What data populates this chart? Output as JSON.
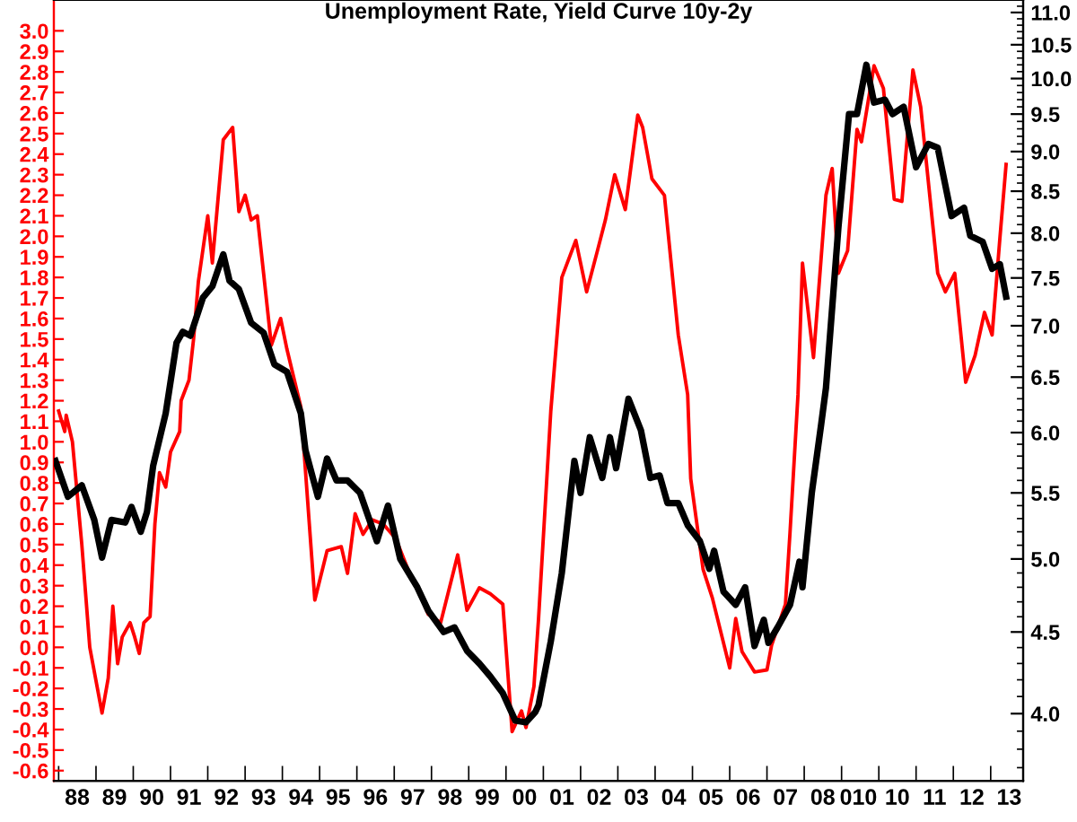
{
  "chart_data": {
    "type": "line",
    "title": "Unemployment Rate, Yield Curve 10y-2y",
    "log": "y2",
    "grid": false,
    "marker": "none",
    "line_style": "solid",
    "xlim": [
      "1987-11-15",
      "2013-11-15"
    ],
    "xticks": [
      {
        "value": "1988-01-01",
        "label": null
      },
      {
        "value": "1988-07-01",
        "label": "88"
      },
      {
        "value": "1989-01-01",
        "label": null
      },
      {
        "value": "1989-07-01",
        "label": "89"
      },
      {
        "value": "1990-01-01",
        "label": null
      },
      {
        "value": "1990-07-01",
        "label": "90"
      },
      {
        "value": "1991-01-01",
        "label": null
      },
      {
        "value": "1991-07-01",
        "label": "91"
      },
      {
        "value": "1992-01-01",
        "label": null
      },
      {
        "value": "1992-07-01",
        "label": "92"
      },
      {
        "value": "1993-01-01",
        "label": null
      },
      {
        "value": "1993-07-01",
        "label": "93"
      },
      {
        "value": "1994-01-01",
        "label": null
      },
      {
        "value": "1994-07-01",
        "label": "94"
      },
      {
        "value": "1995-01-01",
        "label": null
      },
      {
        "value": "1995-07-01",
        "label": "95"
      },
      {
        "value": "1996-01-01",
        "label": null
      },
      {
        "value": "1996-07-01",
        "label": "96"
      },
      {
        "value": "1997-01-01",
        "label": null
      },
      {
        "value": "1997-07-01",
        "label": "97"
      },
      {
        "value": "1998-01-01",
        "label": null
      },
      {
        "value": "1998-07-01",
        "label": "98"
      },
      {
        "value": "1999-01-01",
        "label": null
      },
      {
        "value": "1999-07-01",
        "label": "99"
      },
      {
        "value": "2000-01-01",
        "label": null
      },
      {
        "value": "2000-07-01",
        "label": "00"
      },
      {
        "value": "2001-01-01",
        "label": null
      },
      {
        "value": "2001-07-01",
        "label": "01"
      },
      {
        "value": "2002-01-01",
        "label": null
      },
      {
        "value": "2002-07-01",
        "label": "02"
      },
      {
        "value": "2003-01-01",
        "label": null
      },
      {
        "value": "2003-07-01",
        "label": "03"
      },
      {
        "value": "2004-01-01",
        "label": null
      },
      {
        "value": "2004-07-01",
        "label": "04"
      },
      {
        "value": "2005-01-01",
        "label": null
      },
      {
        "value": "2005-07-01",
        "label": "05"
      },
      {
        "value": "2006-01-01",
        "label": null
      },
      {
        "value": "2006-07-01",
        "label": "06"
      },
      {
        "value": "2007-01-01",
        "label": null
      },
      {
        "value": "2007-07-01",
        "label": "07"
      },
      {
        "value": "2008-01-01",
        "label": null
      },
      {
        "value": "2008-07-01",
        "label": "08"
      },
      {
        "value": "2009-01-01",
        "label": null
      },
      {
        "value": "2009-06-15",
        "label": "010"
      },
      {
        "value": "2010-01-01",
        "label": null
      },
      {
        "value": "2010-07-01",
        "label": "10"
      },
      {
        "value": "2011-01-01",
        "label": null
      },
      {
        "value": "2011-07-01",
        "label": "11"
      },
      {
        "value": "2012-01-01",
        "label": null
      },
      {
        "value": "2012-07-01",
        "label": "12"
      },
      {
        "value": "2013-01-01",
        "label": null
      },
      {
        "value": "2013-07-01",
        "label": "13"
      }
    ],
    "ylim": [
      -0.65,
      3.15
    ],
    "yticks": [
      -0.6,
      -0.5,
      -0.4,
      -0.3,
      -0.2,
      -0.1,
      {
        "value": 0,
        "label": "0.0"
      },
      0.1,
      0.2,
      0.3,
      0.4,
      0.5,
      0.6,
      0.7,
      0.8,
      0.9,
      {
        "value": 1,
        "label": "1.0"
      },
      1.1,
      1.2,
      1.3,
      1.4,
      1.5,
      1.6,
      1.7,
      1.8,
      1.9,
      {
        "value": 2,
        "label": "2.0"
      },
      2.1,
      2.2,
      2.3,
      2.4,
      2.5,
      2.6,
      2.7,
      2.8,
      2.9,
      {
        "value": 3,
        "label": "3.0"
      }
    ],
    "y2lim": [
      3.63,
      11.2
    ],
    "y2ticks": [
      {
        "value": 3.7,
        "label": null
      },
      {
        "value": 3.8,
        "label": null
      },
      {
        "value": 3.9,
        "label": null
      },
      {
        "value": 4,
        "label": "4.0"
      },
      {
        "value": 4.1,
        "label": null
      },
      {
        "value": 4.2,
        "label": null
      },
      {
        "value": 4.3,
        "label": null
      },
      {
        "value": 4.4,
        "label": null
      },
      4.5,
      {
        "value": 4.6,
        "label": null
      },
      {
        "value": 4.7,
        "label": null
      },
      {
        "value": 4.8,
        "label": null
      },
      {
        "value": 4.9,
        "label": null
      },
      {
        "value": 5,
        "label": "5.0"
      },
      {
        "value": 5.1,
        "label": null
      },
      {
        "value": 5.2,
        "label": null
      },
      {
        "value": 5.3,
        "label": null
      },
      {
        "value": 5.4,
        "label": null
      },
      5.5,
      {
        "value": 5.6,
        "label": null
      },
      {
        "value": 5.7,
        "label": null
      },
      {
        "value": 5.8,
        "label": null
      },
      {
        "value": 5.9,
        "label": null
      },
      {
        "value": 6,
        "label": "6.0"
      },
      {
        "value": 6.1,
        "label": null
      },
      {
        "value": 6.2,
        "label": null
      },
      {
        "value": 6.3,
        "label": null
      },
      {
        "value": 6.4,
        "label": null
      },
      6.5,
      {
        "value": 6.6,
        "label": null
      },
      {
        "value": 6.7,
        "label": null
      },
      {
        "value": 6.8,
        "label": null
      },
      {
        "value": 6.9,
        "label": null
      },
      {
        "value": 7,
        "label": "7.0"
      },
      {
        "value": 7.1,
        "label": null
      },
      {
        "value": 7.2,
        "label": null
      },
      {
        "value": 7.3,
        "label": null
      },
      {
        "value": 7.4,
        "label": null
      },
      7.5,
      {
        "value": 7.6,
        "label": null
      },
      {
        "value": 7.7,
        "label": null
      },
      {
        "value": 7.8,
        "label": null
      },
      {
        "value": 7.9,
        "label": null
      },
      {
        "value": 8,
        "label": "8.0"
      },
      {
        "value": 8.1,
        "label": null
      },
      {
        "value": 8.2,
        "label": null
      },
      {
        "value": 8.3,
        "label": null
      },
      {
        "value": 8.4,
        "label": null
      },
      8.5,
      {
        "value": 8.6,
        "label": null
      },
      {
        "value": 8.7,
        "label": null
      },
      {
        "value": 8.8,
        "label": null
      },
      {
        "value": 8.9,
        "label": null
      },
      {
        "value": 9,
        "label": "9.0"
      },
      {
        "value": 9.1,
        "label": null
      },
      {
        "value": 9.2,
        "label": null
      },
      {
        "value": 9.3,
        "label": null
      },
      {
        "value": 9.4,
        "label": null
      },
      9.5,
      {
        "value": 9.6,
        "label": null
      },
      {
        "value": 9.7,
        "label": null
      },
      {
        "value": 9.8,
        "label": null
      },
      {
        "value": 9.9,
        "label": null
      },
      {
        "value": 10,
        "label": "10.0"
      },
      {
        "value": 10.1,
        "label": null
      },
      {
        "value": 10.2,
        "label": null
      },
      {
        "value": 10.3,
        "label": null
      },
      {
        "value": 10.4,
        "label": null
      },
      10.5,
      {
        "value": 10.6,
        "label": null
      },
      {
        "value": 10.7,
        "label": null
      },
      {
        "value": 10.8,
        "label": null
      },
      {
        "value": 10.9,
        "label": null
      },
      {
        "value": 11,
        "label": "11.0"
      },
      {
        "value": 11.1,
        "label": null
      }
    ],
    "series": [
      {
        "color": "#ff0000",
        "axis": "y",
        "x": [
          "1988-01-01",
          "1988-03-01",
          "1988-03-15",
          "1988-05-15",
          "1988-08-15",
          "1988-11-01",
          "1989-03-01",
          "1989-05-01",
          "1989-06-15",
          "1989-08-01",
          "1989-09-15",
          "1989-12-01",
          "1990-01-15",
          "1990-03-01",
          "1990-04-15",
          "1990-06-15",
          "1990-08-01",
          "1990-09-15",
          "1990-11-15",
          "1991-01-01",
          "1991-04-01",
          "1991-04-15",
          "1991-07-01",
          "1991-08-15",
          "1991-10-01",
          "1992-01-01",
          "1992-02-15",
          "1992-06-01",
          "1992-09-01",
          "1992-11-01",
          "1993-01-01",
          "1993-03-01",
          "1993-05-01",
          "1993-07-01",
          "1993-09-15",
          "1993-12-15",
          "1994-02-15",
          "1994-07-01",
          "1994-11-15",
          "1995-03-15",
          "1995-08-01",
          "1995-10-01",
          "1995-12-15",
          "1996-03-01",
          "1996-06-01",
          "1996-09-15",
          "1997-01-15",
          "1997-05-15",
          "1997-09-01",
          "1997-12-01",
          "1998-04-01",
          "1998-09-15",
          "1998-12-15",
          "1999-04-15",
          "1999-08-01",
          "1999-12-01",
          "2000-03-01",
          "2000-06-01",
          "2000-07-15",
          "2000-10-01",
          "2000-11-15",
          "2001-03-15",
          "2001-07-01",
          "2001-11-15",
          "2002-03-01",
          "2002-06-15",
          "2002-09-01",
          "2002-12-01",
          "2003-03-15",
          "2003-07-15",
          "2003-09-01",
          "2003-12-01",
          "2004-04-01",
          "2004-08-15",
          "2004-11-15",
          "2004-12-15",
          "2005-04-15",
          "2005-07-15",
          "2006-01-01",
          "2006-03-01",
          "2006-05-01",
          "2006-09-01",
          "2007-01-01",
          "2007-02-15",
          "2007-07-01",
          "2007-08-15",
          "2007-11-01",
          "2007-12-15",
          "2008-04-01",
          "2008-08-01",
          "2008-10-01",
          "2008-12-01",
          "2009-03-01",
          "2009-06-01",
          "2009-07-15",
          "2009-11-15",
          "2010-02-15",
          "2010-06-01",
          "2010-08-15",
          "2010-12-01",
          "2011-02-15",
          "2011-08-01",
          "2011-10-15",
          "2012-01-15",
          "2012-05-01",
          "2012-08-01",
          "2012-11-01",
          "2013-01-15",
          "2013-04-01",
          "2013-06-01"
        ],
        "values": [
          1.15,
          1.05,
          1.13,
          1.0,
          0.5,
          0.0,
          -0.32,
          -0.15,
          0.2,
          -0.08,
          0.05,
          0.12,
          0.05,
          -0.03,
          0.12,
          0.15,
          0.6,
          0.85,
          0.78,
          0.95,
          1.05,
          1.2,
          1.3,
          1.5,
          1.78,
          2.1,
          1.87,
          2.47,
          2.53,
          2.12,
          2.2,
          2.08,
          2.1,
          1.82,
          1.47,
          1.6,
          1.45,
          1.17,
          0.23,
          0.47,
          0.49,
          0.36,
          0.65,
          0.55,
          0.62,
          0.6,
          0.53,
          0.38,
          0.27,
          0.16,
          0.12,
          0.45,
          0.18,
          0.29,
          0.26,
          0.21,
          -0.41,
          -0.31,
          -0.39,
          -0.19,
          0.14,
          1.15,
          1.8,
          1.98,
          1.73,
          1.93,
          2.08,
          2.3,
          2.13,
          2.59,
          2.53,
          2.28,
          2.2,
          1.52,
          1.23,
          0.82,
          0.38,
          0.24,
          -0.1,
          0.14,
          -0.02,
          -0.12,
          -0.11,
          0.01,
          0.21,
          0.56,
          1.23,
          1.87,
          1.41,
          2.2,
          2.33,
          1.82,
          1.93,
          2.52,
          2.46,
          2.83,
          2.72,
          2.18,
          2.17,
          2.81,
          2.63,
          1.82,
          1.73,
          1.82,
          1.29,
          1.42,
          1.63,
          1.52,
          1.99,
          2.35
        ]
      },
      {
        "color": "#000000",
        "axis": "y2",
        "x": [
          "1987-12-01",
          "1988-04-01",
          "1988-08-15",
          "1988-12-15",
          "1989-03-01",
          "1989-06-01",
          "1989-10-15",
          "1989-12-15",
          "1990-03-15",
          "1990-05-15",
          "1990-07-15",
          "1990-11-15",
          "1991-03-01",
          "1991-05-01",
          "1991-07-15",
          "1991-11-15",
          "1992-02-15",
          "1992-06-01",
          "1992-08-01",
          "1992-11-01",
          "1993-03-01",
          "1993-07-01",
          "1993-10-15",
          "1994-02-15",
          "1994-07-01",
          "1994-08-15",
          "1994-12-15",
          "1995-03-15",
          "1995-06-15",
          "1995-10-01",
          "1996-02-01",
          "1996-07-15",
          "1996-11-01",
          "1997-03-01",
          "1997-08-15",
          "1997-12-01",
          "1998-05-01",
          "1998-08-15",
          "1998-12-15",
          "1999-04-15",
          "1999-08-01",
          "1999-12-01",
          "2000-04-01",
          "2000-07-15",
          "2000-10-15",
          "2000-11-15",
          "2001-03-15",
          "2001-07-01",
          "2001-11-01",
          "2002-01-01",
          "2002-04-01",
          "2002-08-01",
          "2002-10-15",
          "2002-12-15",
          "2003-04-15",
          "2003-08-15",
          "2003-11-15",
          "2004-02-15",
          "2004-05-01",
          "2004-08-15",
          "2004-11-15",
          "2005-03-15",
          "2005-06-15",
          "2005-08-01",
          "2005-11-01",
          "2006-03-01",
          "2006-06-01",
          "2006-09-01",
          "2006-12-01",
          "2007-01-15",
          "2007-04-15",
          "2007-08-15",
          "2007-11-15",
          "2007-12-15",
          "2008-03-15",
          "2008-06-15",
          "2008-08-01",
          "2008-12-01",
          "2009-03-15",
          "2009-06-01",
          "2009-09-01",
          "2009-11-15",
          "2010-03-01",
          "2010-05-15",
          "2010-09-01",
          "2011-01-01",
          "2011-05-01",
          "2011-08-01",
          "2011-12-15",
          "2012-04-15",
          "2012-06-15",
          "2012-10-15",
          "2013-01-15",
          "2013-04-01",
          "2013-06-01"
        ],
        "values": [
          5.76,
          5.47,
          5.56,
          5.29,
          5.01,
          5.29,
          5.27,
          5.39,
          5.2,
          5.35,
          5.72,
          6.17,
          6.83,
          6.94,
          6.9,
          7.29,
          7.41,
          7.76,
          7.47,
          7.38,
          7.03,
          6.93,
          6.62,
          6.55,
          6.17,
          5.85,
          5.47,
          5.78,
          5.6,
          5.6,
          5.5,
          5.13,
          5.4,
          5.0,
          4.8,
          4.64,
          4.5,
          4.53,
          4.38,
          4.3,
          4.22,
          4.12,
          3.96,
          3.95,
          4.01,
          4.05,
          4.44,
          4.9,
          5.76,
          5.5,
          5.96,
          5.62,
          5.96,
          5.7,
          6.3,
          6.02,
          5.62,
          5.64,
          5.42,
          5.42,
          5.25,
          5.13,
          4.93,
          5.06,
          4.77,
          4.68,
          4.8,
          4.41,
          4.58,
          4.43,
          4.53,
          4.68,
          4.98,
          4.8,
          5.5,
          6.07,
          6.4,
          8.07,
          9.5,
          9.5,
          10.2,
          9.66,
          9.7,
          9.5,
          9.6,
          8.8,
          9.1,
          9.05,
          8.2,
          8.3,
          7.97,
          7.9,
          7.6,
          7.65,
          7.3
        ]
      }
    ]
  }
}
